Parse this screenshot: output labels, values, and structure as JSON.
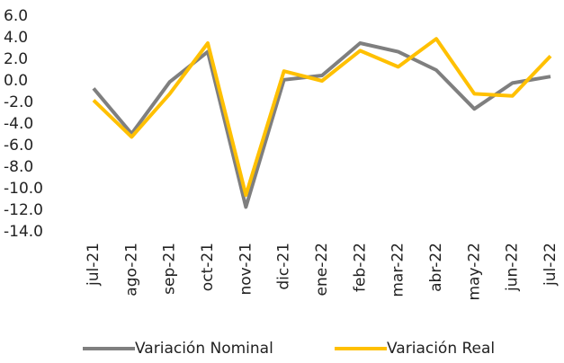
{
  "chart_data": {
    "type": "line",
    "categories": [
      "jul-21",
      "ago-21",
      "sep-21",
      "oct-21",
      "nov-21",
      "dic-21",
      "ene-22",
      "feb-22",
      "mar-22",
      "abr-22",
      "may-22",
      "jun-22",
      "jul-22"
    ],
    "series": [
      {
        "name": "Variación Nominal",
        "color": "#7f7f7f",
        "values": [
          -0.7,
          -4.9,
          -0.1,
          2.7,
          -11.7,
          0.1,
          0.5,
          3.5,
          2.7,
          1.0,
          -2.6,
          -0.2,
          0.4
        ]
      },
      {
        "name": "Variación Real",
        "color": "#ffc000",
        "values": [
          -1.8,
          -5.2,
          -1.2,
          3.5,
          -10.6,
          0.9,
          0.0,
          2.8,
          1.3,
          3.9,
          -1.2,
          -1.4,
          2.3
        ]
      }
    ],
    "ylim": [
      -14,
      6
    ],
    "yticks": [
      {
        "value": -14,
        "label": "-14.0"
      },
      {
        "value": -12,
        "label": "-12.0"
      },
      {
        "value": -10,
        "label": "-10.0"
      },
      {
        "value": -8,
        "label": "-8.0"
      },
      {
        "value": -6,
        "label": "-6.0"
      },
      {
        "value": -4,
        "label": "-4.0"
      },
      {
        "value": -2,
        "label": "-2.0"
      },
      {
        "value": 0,
        "label": "0.0"
      },
      {
        "value": 2,
        "label": "2.0"
      },
      {
        "value": 4,
        "label": "4.0"
      },
      {
        "value": 6,
        "label": "6.0"
      }
    ],
    "legend": "bottom"
  }
}
